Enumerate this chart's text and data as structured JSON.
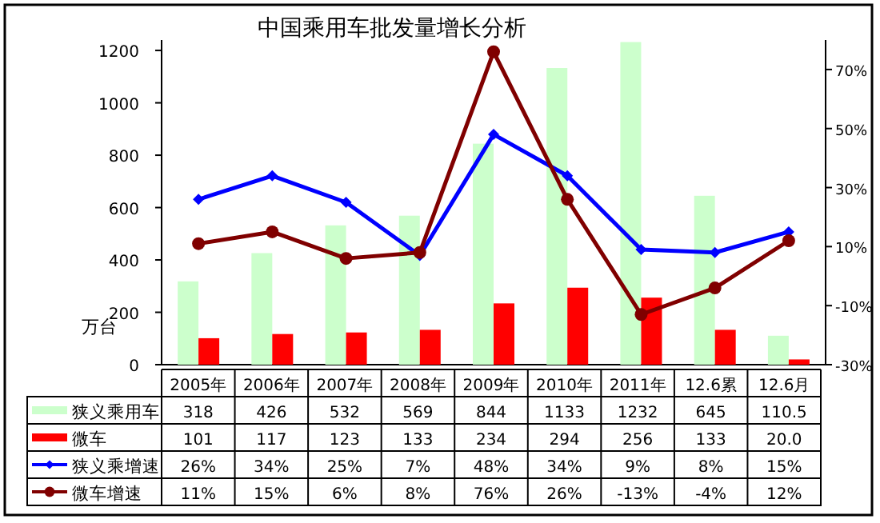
{
  "chart_data": {
    "type": "bar",
    "title": "中国乘用车批发量增长分析",
    "ylabel": "万台",
    "categories": [
      "2005年",
      "2006年",
      "2007年",
      "2008年",
      "2009年",
      "2010年",
      "2011年",
      "12.6累",
      "12.6月"
    ],
    "series": [
      {
        "name": "狭义乘用车",
        "color": "#ccffcc",
        "values": [
          318,
          426,
          532,
          569,
          844,
          1133,
          1232,
          645,
          110.5
        ],
        "value_labels": [
          "318",
          "426",
          "532",
          "569",
          "844",
          "1133",
          "1232",
          "645",
          "110.5"
        ]
      },
      {
        "name": "微车",
        "color": "#ff0000",
        "values": [
          101,
          117,
          123,
          133,
          234,
          294,
          256,
          133,
          20.0
        ],
        "value_labels": [
          "101",
          "117",
          "123",
          "133",
          "234",
          "294",
          "256",
          "133",
          "20.0"
        ]
      },
      {
        "name": "狭义乘增速",
        "type": "line",
        "axis": "y2",
        "marker": "diamond",
        "color": "#0000ff",
        "values": [
          26,
          34,
          25,
          7,
          48,
          34,
          9,
          8,
          15
        ],
        "value_labels": [
          "26%",
          "34%",
          "25%",
          "7%",
          "48%",
          "34%",
          "9%",
          "8%",
          "15%"
        ]
      },
      {
        "name": "微车增速",
        "type": "line",
        "axis": "y2",
        "marker": "circle",
        "color": "#800000",
        "values": [
          11,
          15,
          6,
          8,
          76,
          26,
          -13,
          -4,
          12
        ],
        "value_labels": [
          "11%",
          "15%",
          "6%",
          "8%",
          "76%",
          "26%",
          "-13%",
          "-4%",
          "12%"
        ]
      }
    ],
    "ylim": [
      0,
      1240
    ],
    "yticks": [
      0,
      200,
      400,
      600,
      800,
      1000,
      1200
    ],
    "y2lim": [
      -30,
      80
    ],
    "y2ticks": [
      {
        "value": -30,
        "label": "-30%"
      },
      {
        "value": -10,
        "label": "-10%"
      },
      {
        "value": 10,
        "label": "10%"
      },
      {
        "value": 30,
        "label": "30%"
      },
      {
        "value": 50,
        "label": "50%"
      },
      {
        "value": 70,
        "label": "70%"
      }
    ],
    "grid": false,
    "legend": "bottom",
    "data_labels": true
  }
}
